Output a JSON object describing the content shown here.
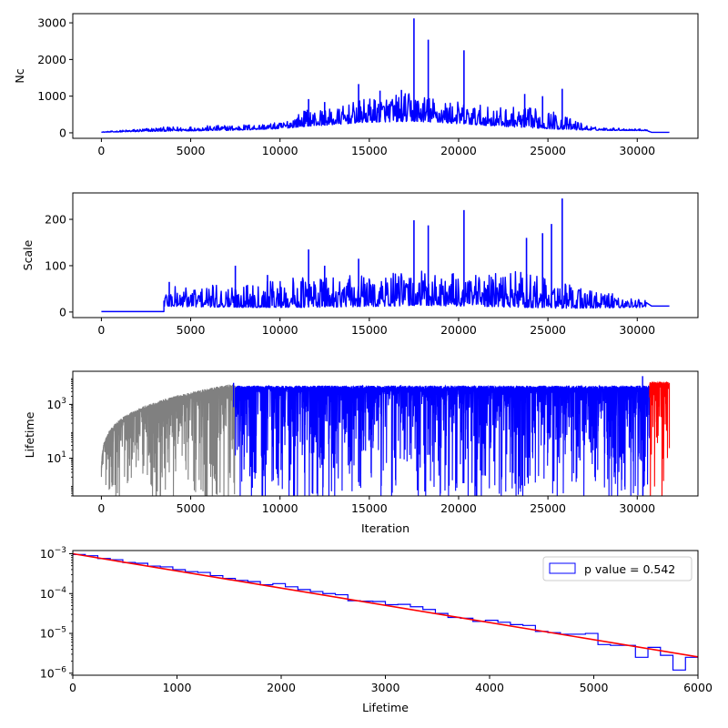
{
  "chart_data": [
    {
      "type": "line",
      "xlabel": "",
      "ylabel": "Nc",
      "xlim": [
        -1600,
        33400
      ],
      "ylim": [
        -150,
        3250
      ],
      "xticks": [
        0,
        5000,
        10000,
        15000,
        20000,
        25000,
        30000
      ],
      "xtick_labels": [
        "0",
        "5000",
        "10000",
        "15000",
        "20000",
        "25000",
        "30000"
      ],
      "yticks": [
        0,
        1000,
        2000,
        3000
      ],
      "ytick_labels": [
        "0",
        "1000",
        "2000",
        "3000"
      ],
      "yscale": "linear",
      "color": "#0000ff",
      "envelope": [
        [
          0,
          15,
          25
        ],
        [
          3000,
          40,
          150
        ],
        [
          7500,
          70,
          220
        ],
        [
          10000,
          110,
          280
        ],
        [
          11500,
          180,
          650
        ],
        [
          13000,
          220,
          650
        ],
        [
          14500,
          280,
          900
        ],
        [
          16000,
          300,
          1050
        ],
        [
          17500,
          310,
          1100
        ],
        [
          19000,
          280,
          950
        ],
        [
          20500,
          230,
          800
        ],
        [
          22000,
          190,
          700
        ],
        [
          23500,
          150,
          700
        ],
        [
          25000,
          110,
          650
        ],
        [
          26000,
          90,
          450
        ],
        [
          27500,
          70,
          160
        ],
        [
          30500,
          60,
          100
        ],
        [
          30800,
          12,
          14
        ],
        [
          31800,
          12,
          14
        ]
      ],
      "spikes": [
        [
          11600,
          920
        ],
        [
          12500,
          840
        ],
        [
          14400,
          1330
        ],
        [
          15600,
          1150
        ],
        [
          16800,
          1170
        ],
        [
          17500,
          3120
        ],
        [
          18300,
          2540
        ],
        [
          20300,
          2250
        ],
        [
          23700,
          1060
        ],
        [
          24700,
          1000
        ],
        [
          25800,
          1200
        ]
      ]
    },
    {
      "type": "line",
      "xlabel": "",
      "ylabel": "Scale",
      "xlim": [
        -1600,
        33400
      ],
      "ylim": [
        -12,
        257
      ],
      "xticks": [
        0,
        5000,
        10000,
        15000,
        20000,
        25000,
        30000
      ],
      "xtick_labels": [
        "0",
        "5000",
        "10000",
        "15000",
        "20000",
        "25000",
        "30000"
      ],
      "yticks": [
        0,
        100,
        200
      ],
      "ytick_labels": [
        "0",
        "100",
        "200"
      ],
      "yscale": "linear",
      "color": "#0000ff",
      "flat_segment": [
        [
          0,
          3500,
          1
        ]
      ],
      "envelope": [
        [
          3500,
          12,
          55
        ],
        [
          7500,
          10,
          60
        ],
        [
          11500,
          10,
          80
        ],
        [
          15000,
          12,
          80
        ],
        [
          18000,
          14,
          90
        ],
        [
          21000,
          12,
          80
        ],
        [
          23500,
          10,
          90
        ],
        [
          26000,
          8,
          60
        ],
        [
          30500,
          10,
          25
        ]
      ],
      "tail": [
        [
          30800,
          13
        ],
        [
          31800,
          13
        ]
      ],
      "spikes": [
        [
          3800,
          65
        ],
        [
          7500,
          100
        ],
        [
          9300,
          80
        ],
        [
          11600,
          135
        ],
        [
          12500,
          100
        ],
        [
          14400,
          115
        ],
        [
          17500,
          198
        ],
        [
          18300,
          187
        ],
        [
          20300,
          220
        ],
        [
          23800,
          160
        ],
        [
          24700,
          170
        ],
        [
          25200,
          190
        ],
        [
          25800,
          245
        ]
      ]
    },
    {
      "type": "line",
      "xlabel": "Iteration",
      "ylabel": "Lifetime",
      "xlim": [
        -1600,
        33400
      ],
      "ylim_log10": [
        -0.4,
        4.23
      ],
      "xticks": [
        0,
        5000,
        10000,
        15000,
        20000,
        25000,
        30000
      ],
      "xtick_labels": [
        "0",
        "5000",
        "10000",
        "15000",
        "20000",
        "25000",
        "30000"
      ],
      "yticks_log10": [
        1,
        3
      ],
      "ytick_base": "10",
      "ytick_exponents": [
        "1",
        "3"
      ],
      "yscale": "log",
      "segments": [
        {
          "name": "",
          "color": "#808080",
          "x_start": 0,
          "x_end": 7500,
          "upper": "growing",
          "upper_max": 6000
        },
        {
          "name": "",
          "color": "#0000ff",
          "x_start": 7500,
          "x_end": 30700,
          "upper": "flat",
          "upper_max": 5000
        },
        {
          "name": "",
          "color": "#ff0000",
          "x_start": 30700,
          "x_end": 31800,
          "upper": "flat",
          "upper_max": 7000
        }
      ]
    },
    {
      "type": "line",
      "xlabel": "Lifetime",
      "ylabel": "",
      "xlim": [
        0,
        6000
      ],
      "ylim_log10": [
        -6.05,
        -2.92
      ],
      "xticks": [
        0,
        1000,
        2000,
        3000,
        4000,
        5000,
        6000
      ],
      "xtick_labels": [
        "0",
        "1000",
        "2000",
        "3000",
        "4000",
        "5000",
        "6000"
      ],
      "yticks_log10": [
        -6,
        -5,
        -4,
        -3
      ],
      "ytick_base": "10",
      "ytick_exponents": [
        "−6",
        "−5",
        "−4",
        "−3"
      ],
      "yscale": "log",
      "histogram": {
        "name": "p value = 0.542",
        "color": "#0000ff",
        "bin_edges": [
          0,
          120,
          240,
          360,
          480,
          600,
          720,
          840,
          960,
          1080,
          1200,
          1320,
          1440,
          1560,
          1680,
          1800,
          1920,
          2040,
          2160,
          2280,
          2400,
          2520,
          2640,
          2760,
          2880,
          3000,
          3120,
          3240,
          3360,
          3480,
          3600,
          3720,
          3840,
          3960,
          4080,
          4200,
          4320,
          4440,
          4560,
          4680,
          4800,
          4920,
          5040,
          5160,
          5280,
          5400,
          5520,
          5640,
          5760,
          5880,
          6000
        ],
        "log10_density": [
          -3.02,
          -3.05,
          -3.12,
          -3.15,
          -3.22,
          -3.24,
          -3.31,
          -3.33,
          -3.4,
          -3.45,
          -3.47,
          -3.55,
          -3.62,
          -3.67,
          -3.7,
          -3.78,
          -3.75,
          -3.83,
          -3.9,
          -3.95,
          -4.0,
          -4.03,
          -4.18,
          -4.19,
          -4.2,
          -4.28,
          -4.27,
          -4.33,
          -4.4,
          -4.5,
          -4.6,
          -4.62,
          -4.7,
          -4.67,
          -4.72,
          -4.78,
          -4.8,
          -4.95,
          -4.98,
          -5.02,
          -5.02,
          -5.0,
          -5.28,
          -5.3,
          -5.3,
          -5.6,
          -5.35,
          -5.55,
          -5.92,
          -5.6
        ]
      },
      "fit": {
        "name": "",
        "color": "#ff0000",
        "log10_y_at_0": -3.0,
        "log10_y_at_6000": -5.59
      }
    }
  ]
}
